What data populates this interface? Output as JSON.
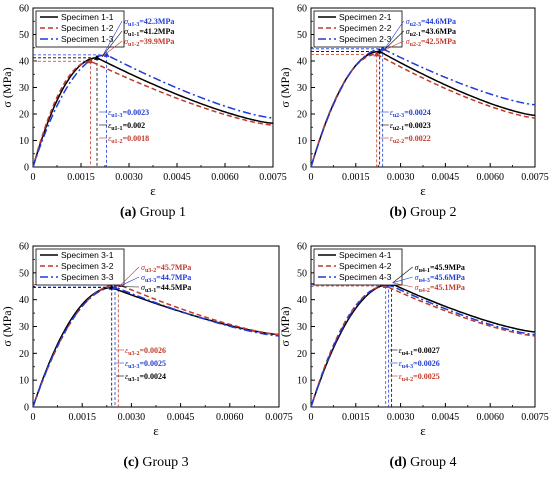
{
  "chart_data": [
    {
      "type": "line",
      "caption_letter": "(a)",
      "caption_text": " Group 1",
      "xlabel": "ε",
      "ylabel": "σ (MPa)",
      "xlim": [
        0,
        0.0075
      ],
      "ylim": [
        0,
        60
      ],
      "xticks": [
        "0",
        "0.0015",
        "0.0030",
        "0.0045",
        "0.0060",
        "0.0075"
      ],
      "yticks": [
        "0",
        "10",
        "20",
        "30",
        "40",
        "50",
        "60"
      ],
      "legend_position": "top-left",
      "series": [
        {
          "name": "Specimen 1-1",
          "color": "#000000",
          "dash": "solid",
          "peak_strain": 0.002,
          "peak_stress": 41.2,
          "end_stress": 16.5
        },
        {
          "name": "Specimen 1-2",
          "color": "#c0392b",
          "dash": "dashed",
          "peak_strain": 0.0018,
          "peak_stress": 39.9,
          "end_stress": 15.8
        },
        {
          "name": "Specimen 1-3",
          "color": "#1f3bd6",
          "dash": "dashdot",
          "peak_strain": 0.0023,
          "peak_stress": 42.3,
          "end_stress": 18.5
        }
      ],
      "annotations": {
        "stress": [
          {
            "sub": "u1-3",
            "value": "=42.3MPa",
            "color": "#1f3bd6"
          },
          {
            "sub": "u1-1",
            "value": "=41.2MPa",
            "color": "#000000"
          },
          {
            "sub": "u1-2",
            "value": "=39.9MPa",
            "color": "#c0392b"
          }
        ],
        "strain": [
          {
            "sub": "u1-3",
            "value": "=0.0023",
            "color": "#1f3bd6"
          },
          {
            "sub": "u1-1",
            "value": "=0.002",
            "color": "#000000"
          },
          {
            "sub": "u1-2",
            "value": "=0.0018",
            "color": "#c0392b"
          }
        ]
      }
    },
    {
      "type": "line",
      "caption_letter": "(b)",
      "caption_text": " Group 2",
      "xlabel": "ε",
      "ylabel": "σ (MPa)",
      "xlim": [
        0,
        0.0075
      ],
      "ylim": [
        0,
        60
      ],
      "xticks": [
        "0",
        "0.0015",
        "0.0030",
        "0.0045",
        "0.0060",
        "0.0075"
      ],
      "yticks": [
        "0",
        "10",
        "20",
        "30",
        "40",
        "50",
        "60"
      ],
      "legend_position": "top-left",
      "series": [
        {
          "name": "Specimen 2-1",
          "color": "#000000",
          "dash": "solid",
          "peak_strain": 0.0023,
          "peak_stress": 43.6,
          "end_stress": 19.5
        },
        {
          "name": "Specimen 2-2",
          "color": "#c0392b",
          "dash": "dashed",
          "peak_strain": 0.0022,
          "peak_stress": 42.5,
          "end_stress": 18.5
        },
        {
          "name": "Specimen 2-3",
          "color": "#1f3bd6",
          "dash": "dashdot",
          "peak_strain": 0.0024,
          "peak_stress": 44.6,
          "end_stress": 23.5
        }
      ],
      "annotations": {
        "stress": [
          {
            "sub": "u2-3",
            "value": "=44.6MPa",
            "color": "#1f3bd6"
          },
          {
            "sub": "u2-1",
            "value": "=43.6MPa",
            "color": "#000000"
          },
          {
            "sub": "u2-2",
            "value": "=42.5MPa",
            "color": "#c0392b"
          }
        ],
        "strain": [
          {
            "sub": "u2-3",
            "value": "=0.0024",
            "color": "#1f3bd6"
          },
          {
            "sub": "u2-1",
            "value": "=0.0023",
            "color": "#000000"
          },
          {
            "sub": "u2-2",
            "value": "=0.0022",
            "color": "#c0392b"
          }
        ]
      }
    },
    {
      "type": "line",
      "caption_letter": "(c)",
      "caption_text": " Group 3",
      "xlabel": "ε",
      "ylabel": "σ (MPa)",
      "xlim": [
        0,
        0.0075
      ],
      "ylim": [
        0,
        60
      ],
      "xticks": [
        "0",
        "0.0015",
        "0.0030",
        "0.0045",
        "0.0060",
        "0.0075"
      ],
      "yticks": [
        "0",
        "10",
        "20",
        "30",
        "40",
        "50",
        "60"
      ],
      "legend_position": "top-left",
      "series": [
        {
          "name": "Specimen 3-1",
          "color": "#000000",
          "dash": "solid",
          "peak_strain": 0.0024,
          "peak_stress": 44.5,
          "end_stress": 27.0
        },
        {
          "name": "Specimen 3-2",
          "color": "#c0392b",
          "dash": "dashed",
          "peak_strain": 0.0026,
          "peak_stress": 45.7,
          "end_stress": 27.0
        },
        {
          "name": "Specimen 3-3",
          "color": "#1f3bd6",
          "dash": "dashdot",
          "peak_strain": 0.0025,
          "peak_stress": 44.7,
          "end_stress": 26.5
        }
      ],
      "annotations": {
        "stress": [
          {
            "sub": "u3-2",
            "value": "=45.7MPa",
            "color": "#c0392b"
          },
          {
            "sub": "u3-3",
            "value": "=44.7MPa",
            "color": "#1f3bd6"
          },
          {
            "sub": "u3-1",
            "value": "=44.5MPa",
            "color": "#000000"
          }
        ],
        "strain": [
          {
            "sub": "u3-2",
            "value": "=0.0026",
            "color": "#c0392b"
          },
          {
            "sub": "u3-3",
            "value": "=0.0025",
            "color": "#1f3bd6"
          },
          {
            "sub": "u3-1",
            "value": "=0.0024",
            "color": "#000000"
          }
        ]
      }
    },
    {
      "type": "line",
      "caption_letter": "(d)",
      "caption_text": " Group 4",
      "xlabel": "ε",
      "ylabel": "σ (MPa)",
      "xlim": [
        0,
        0.0075
      ],
      "ylim": [
        0,
        60
      ],
      "xticks": [
        "0",
        "0.0015",
        "0.0030",
        "0.0045",
        "0.0060",
        "0.0075"
      ],
      "yticks": [
        "0",
        "10",
        "20",
        "30",
        "40",
        "50",
        "60"
      ],
      "legend_position": "top-left",
      "series": [
        {
          "name": "Specimen 4-1",
          "color": "#000000",
          "dash": "solid",
          "peak_strain": 0.0027,
          "peak_stress": 45.9,
          "end_stress": 28.0
        },
        {
          "name": "Specimen 4-2",
          "color": "#c0392b",
          "dash": "dashed",
          "peak_strain": 0.0025,
          "peak_stress": 45.1,
          "end_stress": 26.5
        },
        {
          "name": "Specimen 4-3",
          "color": "#1f3bd6",
          "dash": "dashdot",
          "peak_strain": 0.0026,
          "peak_stress": 45.6,
          "end_stress": 27.0
        }
      ],
      "annotations": {
        "stress": [
          {
            "sub": "u4-1",
            "value": "=45.9MPa",
            "color": "#000000"
          },
          {
            "sub": "u4-3",
            "value": "=45.6MPa",
            "color": "#1f3bd6"
          },
          {
            "sub": "u4-2",
            "value": "=45.1MPa",
            "color": "#c0392b"
          }
        ],
        "strain": [
          {
            "sub": "u4-1",
            "value": "=0.0027",
            "color": "#000000"
          },
          {
            "sub": "u4-3",
            "value": "=0.0026",
            "color": "#1f3bd6"
          },
          {
            "sub": "u4-2",
            "value": "=0.0025",
            "color": "#c0392b"
          }
        ]
      }
    }
  ]
}
